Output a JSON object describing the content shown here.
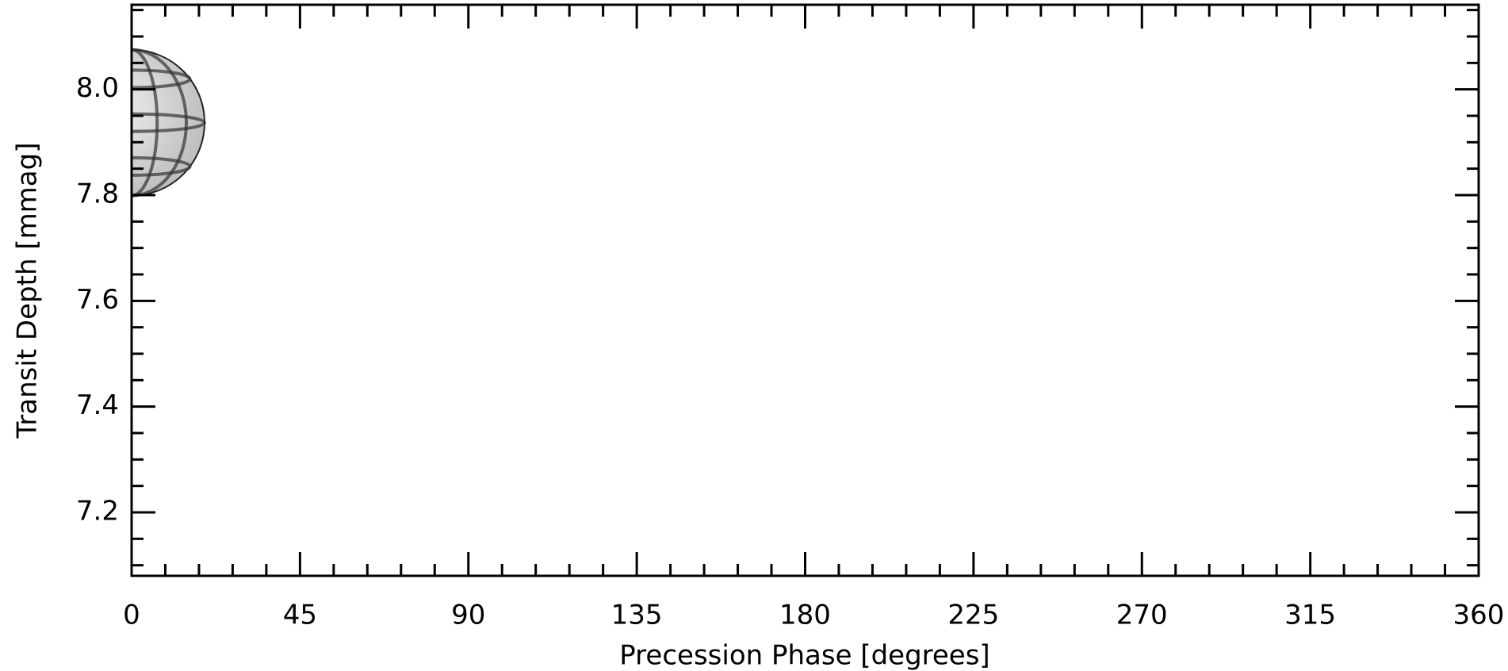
{
  "chart_data": {
    "type": "scatter",
    "xlabel": "Precession Phase [degrees]",
    "ylabel": "Transit Depth [mmag]",
    "xlim": [
      0,
      360
    ],
    "xticks": [
      0,
      45,
      90,
      135,
      180,
      225,
      270,
      315,
      360
    ],
    "ylim": [
      7.08,
      8.16
    ],
    "yticks": [
      7.2,
      7.4,
      7.6,
      7.8,
      {
        "value": 8.0,
        "label": "8.0"
      }
    ],
    "minor_ticks": true,
    "series": [
      {
        "x": [
          0
        ],
        "values": [
          7.937
        ],
        "color": "#cccccc"
      }
    ]
  }
}
